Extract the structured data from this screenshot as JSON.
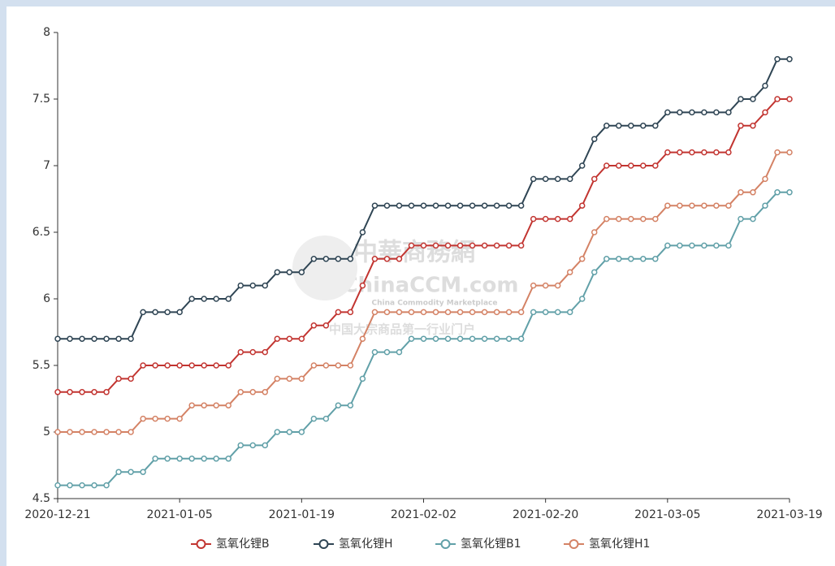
{
  "chart_data": {
    "type": "line",
    "categories": [
      "2020-12-21",
      null,
      null,
      null,
      null,
      null,
      null,
      null,
      null,
      null,
      "2021-01-05",
      null,
      null,
      null,
      null,
      null,
      null,
      null,
      null,
      null,
      "2021-01-19",
      null,
      null,
      null,
      null,
      null,
      null,
      null,
      null,
      null,
      "2021-02-02",
      null,
      null,
      null,
      null,
      null,
      null,
      null,
      null,
      null,
      "2021-02-20",
      null,
      null,
      null,
      null,
      null,
      null,
      null,
      null,
      null,
      "2021-03-05",
      null,
      null,
      null,
      null,
      null,
      null,
      null,
      null,
      null,
      "2021-03-19"
    ],
    "series": [
      {
        "name": "氢氧化锂B",
        "color": "#c23531",
        "values": [
          5.3,
          5.3,
          5.3,
          5.3,
          5.3,
          5.4,
          5.4,
          5.5,
          5.5,
          5.5,
          5.5,
          5.5,
          5.5,
          5.5,
          5.5,
          5.6,
          5.6,
          5.6,
          5.7,
          5.7,
          5.7,
          5.8,
          5.8,
          5.9,
          5.9,
          6.1,
          6.3,
          6.3,
          6.3,
          6.4,
          6.4,
          6.4,
          6.4,
          6.4,
          6.4,
          6.4,
          6.4,
          6.4,
          6.4,
          6.6,
          6.6,
          6.6,
          6.6,
          6.7,
          6.9,
          7.0,
          7.0,
          7.0,
          7.0,
          7.0,
          7.1,
          7.1,
          7.1,
          7.1,
          7.1,
          7.1,
          7.3,
          7.3,
          7.4,
          7.5,
          7.5
        ]
      },
      {
        "name": "氢氧化锂H",
        "color": "#2f4554",
        "values": [
          5.7,
          5.7,
          5.7,
          5.7,
          5.7,
          5.7,
          5.7,
          5.9,
          5.9,
          5.9,
          5.9,
          6.0,
          6.0,
          6.0,
          6.0,
          6.1,
          6.1,
          6.1,
          6.2,
          6.2,
          6.2,
          6.3,
          6.3,
          6.3,
          6.3,
          6.5,
          6.7,
          6.7,
          6.7,
          6.7,
          6.7,
          6.7,
          6.7,
          6.7,
          6.7,
          6.7,
          6.7,
          6.7,
          6.7,
          6.9,
          6.9,
          6.9,
          6.9,
          7.0,
          7.2,
          7.3,
          7.3,
          7.3,
          7.3,
          7.3,
          7.4,
          7.4,
          7.4,
          7.4,
          7.4,
          7.4,
          7.5,
          7.5,
          7.6,
          7.8,
          7.8
        ]
      },
      {
        "name": "氢氧化锂B1",
        "color": "#61a0a8",
        "values": [
          4.6,
          4.6,
          4.6,
          4.6,
          4.6,
          4.7,
          4.7,
          4.7,
          4.8,
          4.8,
          4.8,
          4.8,
          4.8,
          4.8,
          4.8,
          4.9,
          4.9,
          4.9,
          5.0,
          5.0,
          5.0,
          5.1,
          5.1,
          5.2,
          5.2,
          5.4,
          5.6,
          5.6,
          5.6,
          5.7,
          5.7,
          5.7,
          5.7,
          5.7,
          5.7,
          5.7,
          5.7,
          5.7,
          5.7,
          5.9,
          5.9,
          5.9,
          5.9,
          6.0,
          6.2,
          6.3,
          6.3,
          6.3,
          6.3,
          6.3,
          6.4,
          6.4,
          6.4,
          6.4,
          6.4,
          6.4,
          6.6,
          6.6,
          6.7,
          6.8,
          6.8
        ]
      },
      {
        "name": "氢氧化锂H1",
        "color": "#d48265",
        "values": [
          5.0,
          5.0,
          5.0,
          5.0,
          5.0,
          5.0,
          5.0,
          5.1,
          5.1,
          5.1,
          5.1,
          5.2,
          5.2,
          5.2,
          5.2,
          5.3,
          5.3,
          5.3,
          5.4,
          5.4,
          5.4,
          5.5,
          5.5,
          5.5,
          5.5,
          5.7,
          5.9,
          5.9,
          5.9,
          5.9,
          5.9,
          5.9,
          5.9,
          5.9,
          5.9,
          5.9,
          5.9,
          5.9,
          5.9,
          6.1,
          6.1,
          6.1,
          6.2,
          6.3,
          6.5,
          6.6,
          6.6,
          6.6,
          6.6,
          6.6,
          6.7,
          6.7,
          6.7,
          6.7,
          6.7,
          6.7,
          6.8,
          6.8,
          6.9,
          7.1,
          7.1
        ]
      }
    ],
    "ylim": [
      4.5,
      8
    ],
    "yticks": [
      4.5,
      5,
      5.5,
      6,
      6.5,
      7,
      7.5,
      8
    ],
    "grid": false,
    "legend": "bottom",
    "watermark": [
      "中華商務網",
      "ChinaCCM.com",
      "China Commodity Marketplace",
      "中国大宗商品第一行业门户"
    ]
  }
}
